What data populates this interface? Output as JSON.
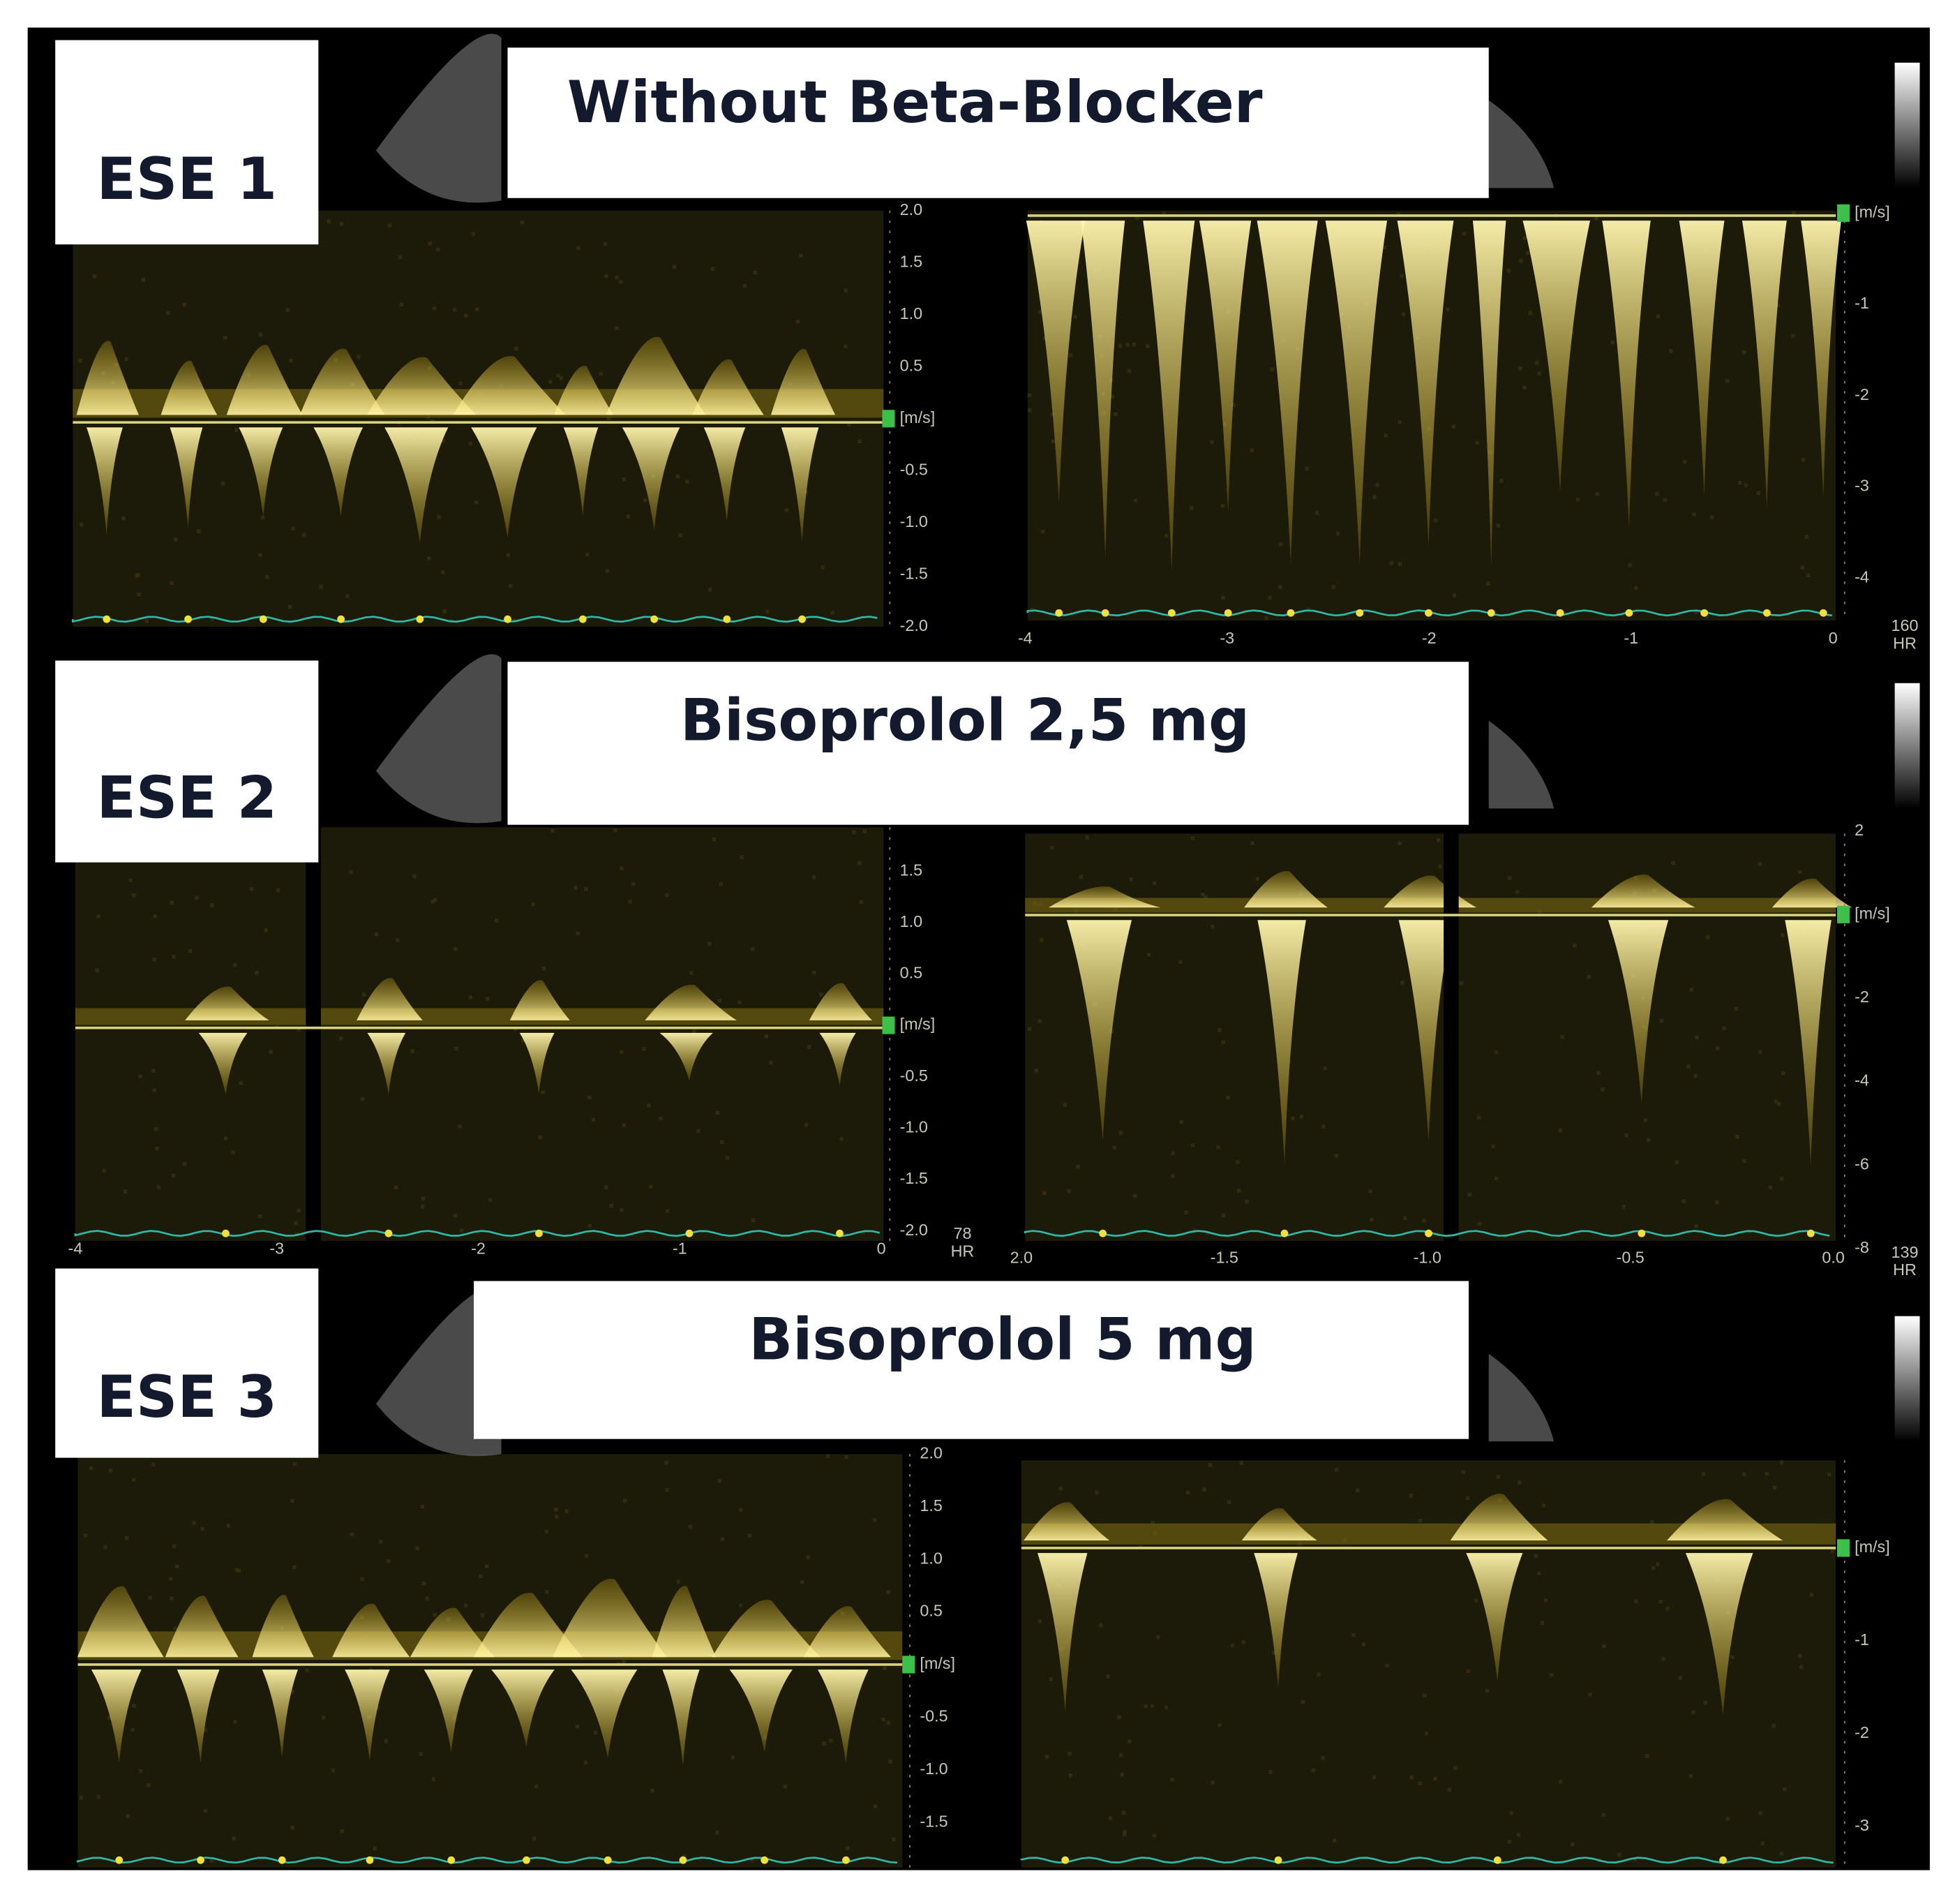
{
  "panels": [
    {
      "label": "ESE 1",
      "title": "Without Beta-Blocker",
      "left_axis": [
        "2.0",
        "1.5",
        "1.0",
        "0.5",
        "[m/s]",
        "-0.5",
        "-1.0",
        "-1.5",
        "-2.0"
      ],
      "right_axis": [
        "[m/s]",
        "-1",
        "-2",
        "-3",
        "-4"
      ],
      "right_time_axis": [
        "-4",
        "-3",
        "-2",
        "-1",
        "0"
      ],
      "heart_rate": "160",
      "hr_unit": "HR"
    },
    {
      "label": "ESE 2",
      "title": "Bisoprolol 2,5 mg",
      "left_axis": [
        "1.5",
        "1.0",
        "0.5",
        "[m/s]",
        "-0.5",
        "-1.0",
        "-1.5",
        "-2.0"
      ],
      "left_time_axis": [
        "-4",
        "-3",
        "-2",
        "-1",
        "0"
      ],
      "left_heart_rate": "78",
      "right_axis": [
        "2",
        "[m/s]",
        "-2",
        "-4",
        "-6",
        "-8"
      ],
      "right_time_axis": [
        "2.0",
        "-1.5",
        "-1.0",
        "-0.5",
        "0.0"
      ],
      "heart_rate": "139",
      "hr_unit": "HR"
    },
    {
      "label": "ESE 3",
      "title": "Bisoprolol 5 mg",
      "left_axis": [
        "2.0",
        "1.5",
        "1.0",
        "0.5",
        "[m/s]",
        "-0.5",
        "-1.0",
        "-1.5"
      ],
      "right_axis": [
        "[m/s]",
        "-1",
        "-2",
        "-3"
      ]
    }
  ]
}
